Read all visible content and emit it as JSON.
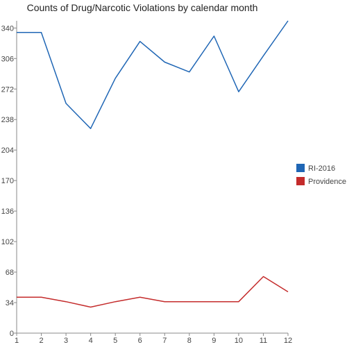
{
  "chart_data": {
    "type": "line",
    "title": "Counts of Drug/Narcotic Violations by calendar month",
    "xlabel": "",
    "ylabel": "",
    "x": [
      1,
      2,
      3,
      4,
      5,
      6,
      7,
      8,
      9,
      10,
      11,
      12
    ],
    "x_tick_labels": [
      "1",
      "2",
      "3",
      "4",
      "5",
      "6",
      "7",
      "8",
      "9",
      "10",
      "11",
      "12"
    ],
    "ylim": [
      0,
      348
    ],
    "y_ticks": [
      0,
      34,
      68,
      102,
      136,
      170,
      204,
      238,
      272,
      306,
      340
    ],
    "grid": false,
    "legend_position": "right",
    "series": [
      {
        "name": "RI-2016",
        "color": "#1f66b5",
        "values": [
          335,
          335,
          256,
          228,
          284,
          325,
          302,
          291,
          331,
          269,
          309,
          348
        ]
      },
      {
        "name": "Providence",
        "color": "#c42b2b",
        "values": [
          40,
          40,
          35,
          29,
          35,
          40,
          35,
          35,
          35,
          35,
          63,
          46
        ]
      }
    ]
  }
}
